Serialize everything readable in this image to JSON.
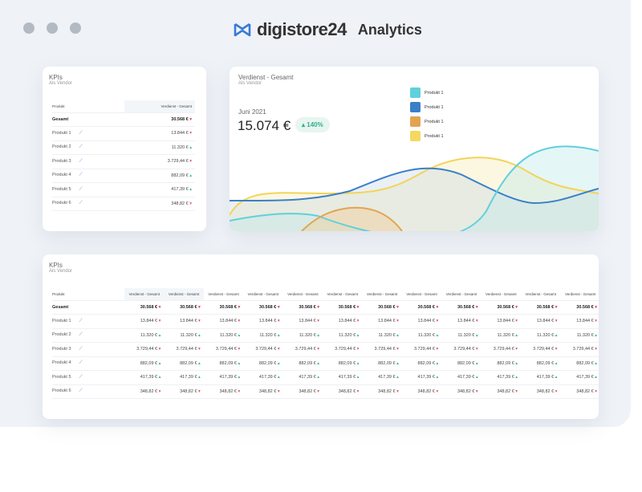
{
  "window": {
    "controls": [
      "close",
      "minimize",
      "maximize"
    ]
  },
  "header": {
    "brand": "digistore24",
    "product": "Analytics",
    "logo_color": "#3a7bd5"
  },
  "kpi_small": {
    "title": "KPIs",
    "subtitle": "Als Vendor",
    "col_product": "Produkt",
    "col_value": "Verdienst - Gesamt",
    "rows": [
      {
        "name": "Gesamt",
        "value": "30.568 €",
        "trend": "down"
      },
      {
        "name": "Produkt 1",
        "value": "13.844 €",
        "trend": "down"
      },
      {
        "name": "Produkt 2",
        "value": "11.320 €",
        "trend": "up"
      },
      {
        "name": "Produkt 3",
        "value": "3.729,44 €",
        "trend": "down"
      },
      {
        "name": "Produkt 4",
        "value": "882,09 €",
        "trend": "up"
      },
      {
        "name": "Produkt 5",
        "value": "417,39 €",
        "trend": "up"
      },
      {
        "name": "Produkt 6",
        "value": "348,82 €",
        "trend": "down"
      }
    ]
  },
  "chart_card": {
    "title": "Verdienst - Gesamt",
    "subtitle": "Als Vendor",
    "period": "Juni 2021",
    "value": "15.074 €",
    "change": "140%",
    "change_dir": "up",
    "legend": [
      {
        "label": "Produkt 1",
        "color": "#5fd0dc"
      },
      {
        "label": "Produkt 1",
        "color": "#3a80c8"
      },
      {
        "label": "Produkt 1",
        "color": "#e3a452"
      },
      {
        "label": "Produkt 1",
        "color": "#f5d860"
      }
    ]
  },
  "kpi_large": {
    "title": "KPIs",
    "subtitle": "Als Vendor",
    "col_product": "Produkt",
    "columns": [
      "Verdienst - Gesamt",
      "Verdienst - Gesamt",
      "Verdienst - Gesamt",
      "Verdienst - Gesamt",
      "Verdienst - Gesamt",
      "Verdienst - Gesamt",
      "Verdienst - Gesamt",
      "Verdienst - Gesamt",
      "Verdienst - Gesamt",
      "Verdienst - Gesamt",
      "Verdienst - Gesamt",
      "Verdienst - Gesamt"
    ],
    "rows": [
      {
        "name": "Gesamt",
        "values": [
          "30.568 €",
          "30.568 €",
          "30.568 €",
          "30.568 €",
          "30.568 €",
          "30.568 €",
          "30.568 €",
          "30.568 €",
          "30.568 €",
          "30.568 €",
          "30.568 €",
          "30.568 €"
        ],
        "trend": "down"
      },
      {
        "name": "Produkt 1",
        "values": [
          "13.844 €",
          "13.844 €",
          "13.844 €",
          "13.844 €",
          "13.844 €",
          "13.844 €",
          "13.844 €",
          "13.844 €",
          "13.844 €",
          "13.844 €",
          "13.844 €",
          "13.844 €"
        ],
        "trend": "down"
      },
      {
        "name": "Produkt 2",
        "values": [
          "11.320 €",
          "11.320 €",
          "11.320 €",
          "11.320 €",
          "11.320 €",
          "11.320 €",
          "11.320 €",
          "11.320 €",
          "11.320 €",
          "11.320 €",
          "11.320 €",
          "11.320 €"
        ],
        "trend": "up"
      },
      {
        "name": "Produkt 3",
        "values": [
          "3.729,44 €",
          "3.729,44 €",
          "3.729,44 €",
          "3.729,44 €",
          "3.729,44 €",
          "3.729,44 €",
          "3.729,44 €",
          "3.729,44 €",
          "3.729,44 €",
          "3.729,44 €",
          "3.729,44 €",
          "3.729,44 €"
        ],
        "trend": "down"
      },
      {
        "name": "Produkt 4",
        "values": [
          "882,09 €",
          "882,09 €",
          "882,09 €",
          "882,09 €",
          "882,09 €",
          "882,09 €",
          "882,09 €",
          "882,09 €",
          "882,09 €",
          "882,09 €",
          "882,09 €",
          "882,09 €"
        ],
        "trend": "up"
      },
      {
        "name": "Produkt 5",
        "values": [
          "417,39 €",
          "417,39 €",
          "417,39 €",
          "417,39 €",
          "417,39 €",
          "417,39 €",
          "417,39 €",
          "417,39 €",
          "417,39 €",
          "417,39 €",
          "417,39 €",
          "417,39 €"
        ],
        "trend": "up"
      },
      {
        "name": "Produkt 6",
        "values": [
          "348,82 €",
          "348,82 €",
          "348,82 €",
          "348,82 €",
          "348,82 €",
          "348,82 €",
          "348,82 €",
          "348,82 €",
          "348,82 €",
          "348,82 €",
          "348,82 €",
          "348,82 €"
        ],
        "trend": "down"
      }
    ]
  }
}
